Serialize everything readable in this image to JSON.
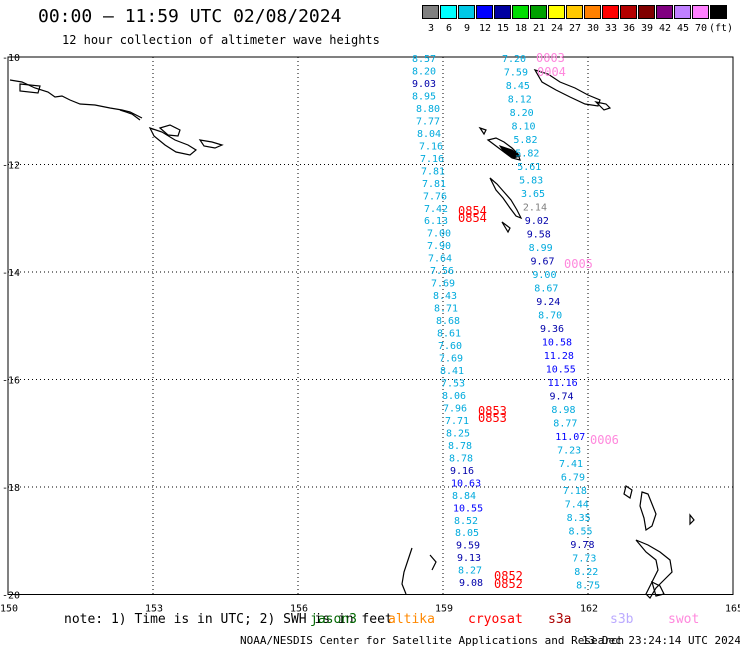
{
  "title": "00:00 – 11:59 UTC 02/08/2024",
  "subtitle": "12 hour collection of altimeter wave heights",
  "legend": {
    "colors": [
      "#808080",
      "#00ffff",
      "#00c8e6",
      "#0000ff",
      "#0000a0",
      "#00dd00",
      "#00a000",
      "#ffff00",
      "#ffc800",
      "#ff8000",
      "#ff0000",
      "#b40000",
      "#800000",
      "#800080",
      "#c080ff",
      "#ff80ff",
      "#000000"
    ],
    "labels": [
      "3",
      "6",
      "9",
      "12",
      "15",
      "18",
      "21",
      "24",
      "27",
      "30",
      "33",
      "36",
      "39",
      "42",
      "45",
      "70",
      "(ft)"
    ]
  },
  "lat_labels": [
    "-10",
    "-12",
    "-14",
    "-16",
    "-18",
    "-20"
  ],
  "lon_labels": [
    "150",
    "153",
    "156",
    "159",
    "162",
    "165"
  ],
  "track_left": [
    {
      "v": "8.57",
      "c": "#00aadd"
    },
    {
      "v": "8.20",
      "c": "#00aadd"
    },
    {
      "v": "9.03",
      "c": "#0000aa"
    },
    {
      "v": "8.95",
      "c": "#00aadd"
    },
    {
      "v": "8.80",
      "c": "#00aadd"
    },
    {
      "v": "7.77",
      "c": "#00aadd"
    },
    {
      "v": "8.04",
      "c": "#00aadd"
    },
    {
      "v": "7.16",
      "c": "#00aadd"
    },
    {
      "v": "7.16",
      "c": "#00aadd"
    },
    {
      "v": "7.81",
      "c": "#00aadd"
    },
    {
      "v": "7.81",
      "c": "#00aadd"
    },
    {
      "v": "7.76",
      "c": "#00aadd"
    },
    {
      "v": "7.42",
      "c": "#00aadd"
    },
    {
      "v": "6.13",
      "c": "#00aadd"
    },
    {
      "v": "7.00",
      "c": "#00aadd"
    },
    {
      "v": "7.90",
      "c": "#00aadd"
    },
    {
      "v": "7.64",
      "c": "#00aadd"
    },
    {
      "v": "7.56",
      "c": "#00aadd"
    },
    {
      "v": "7.69",
      "c": "#00aadd"
    },
    {
      "v": "8.43",
      "c": "#00aadd"
    },
    {
      "v": "8.71",
      "c": "#00aadd"
    },
    {
      "v": "8.68",
      "c": "#00aadd"
    },
    {
      "v": "8.61",
      "c": "#00aadd"
    },
    {
      "v": "7.60",
      "c": "#00aadd"
    },
    {
      "v": "7.69",
      "c": "#00aadd"
    },
    {
      "v": "8.41",
      "c": "#00aadd"
    },
    {
      "v": "7.53",
      "c": "#00aadd"
    },
    {
      "v": "8.06",
      "c": "#00aadd"
    },
    {
      "v": "7.96",
      "c": "#00aadd"
    },
    {
      "v": "7.71",
      "c": "#00aadd"
    },
    {
      "v": "8.25",
      "c": "#00aadd"
    },
    {
      "v": "8.78",
      "c": "#00aadd"
    },
    {
      "v": "8.78",
      "c": "#00aadd"
    },
    {
      "v": "9.16",
      "c": "#0000aa"
    },
    {
      "v": "10.63",
      "c": "#0000ff"
    },
    {
      "v": "8.84",
      "c": "#00aadd"
    },
    {
      "v": "10.55",
      "c": "#0000ff"
    },
    {
      "v": "8.52",
      "c": "#00aadd"
    },
    {
      "v": "8.05",
      "c": "#00aadd"
    },
    {
      "v": "9.59",
      "c": "#0000aa"
    },
    {
      "v": "9.13",
      "c": "#0000aa"
    },
    {
      "v": "8.27",
      "c": "#00aadd"
    },
    {
      "v": "9.08",
      "c": "#0000aa"
    }
  ],
  "track_right": [
    {
      "v": "7.20",
      "c": "#00aadd"
    },
    {
      "v": "7.59",
      "c": "#00aadd"
    },
    {
      "v": "8.45",
      "c": "#00aadd"
    },
    {
      "v": "8.12",
      "c": "#00aadd"
    },
    {
      "v": "8.20",
      "c": "#00aadd"
    },
    {
      "v": "8.10",
      "c": "#00aadd"
    },
    {
      "v": "5.82",
      "c": "#00aadd"
    },
    {
      "v": "5.82",
      "c": "#00aadd"
    },
    {
      "v": "5.61",
      "c": "#00aadd"
    },
    {
      "v": "5.83",
      "c": "#00aadd"
    },
    {
      "v": "3.65",
      "c": "#00aadd"
    },
    {
      "v": "2.14",
      "c": "#808080"
    },
    {
      "v": "9.02",
      "c": "#0000aa"
    },
    {
      "v": "9.58",
      "c": "#0000aa"
    },
    {
      "v": "8.99",
      "c": "#00aadd"
    },
    {
      "v": "9.67",
      "c": "#0000aa"
    },
    {
      "v": "9.00",
      "c": "#00aadd"
    },
    {
      "v": "8.67",
      "c": "#00aadd"
    },
    {
      "v": "9.24",
      "c": "#0000aa"
    },
    {
      "v": "8.70",
      "c": "#00aadd"
    },
    {
      "v": "9.36",
      "c": "#0000aa"
    },
    {
      "v": "10.58",
      "c": "#0000ff"
    },
    {
      "v": "11.28",
      "c": "#0000ff"
    },
    {
      "v": "10.55",
      "c": "#0000ff"
    },
    {
      "v": "11.16",
      "c": "#0000ff"
    },
    {
      "v": "9.74",
      "c": "#0000aa"
    },
    {
      "v": "8.98",
      "c": "#00aadd"
    },
    {
      "v": "8.77",
      "c": "#00aadd"
    },
    {
      "v": "11.07",
      "c": "#0000ff"
    },
    {
      "v": "7.23",
      "c": "#00aadd"
    },
    {
      "v": "7.41",
      "c": "#00aadd"
    },
    {
      "v": "6.79",
      "c": "#00aadd"
    },
    {
      "v": "7.18",
      "c": "#00aadd"
    },
    {
      "v": "7.44",
      "c": "#00aadd"
    },
    {
      "v": "8.35",
      "c": "#00aadd"
    },
    {
      "v": "8.55",
      "c": "#00aadd"
    },
    {
      "v": "9.78",
      "c": "#0000aa"
    },
    {
      "v": "7.73",
      "c": "#00aadd"
    },
    {
      "v": "8.22",
      "c": "#00aadd"
    },
    {
      "v": "8.75",
      "c": "#00aadd"
    }
  ],
  "time_labels": [
    {
      "v": "0003",
      "c": "#ff88dd"
    },
    {
      "v": "0004",
      "c": "#ff88dd"
    },
    {
      "v": "0854",
      "c": "#ff0000"
    },
    {
      "v": "0854",
      "c": "#ff0000"
    },
    {
      "v": "0005",
      "c": "#ff88dd"
    },
    {
      "v": "0853",
      "c": "#ff0000"
    },
    {
      "v": "0853",
      "c": "#ff0000"
    },
    {
      "v": "0006",
      "c": "#ff88dd"
    },
    {
      "v": "0852",
      "c": "#ff0000"
    },
    {
      "v": "0852",
      "c": "#ff0000"
    }
  ],
  "note": "note: 1) Time is in UTC; 2) SWH is in feet",
  "satellites": [
    {
      "name": "jason3",
      "c": "#006600"
    },
    {
      "name": "altika",
      "c": "#ff8800"
    },
    {
      "name": "cryosat",
      "c": "#ff0000"
    },
    {
      "name": "s3a",
      "c": "#aa0000"
    },
    {
      "name": "s3b",
      "c": "#bbaaff"
    },
    {
      "name": "swot",
      "c": "#ff88dd"
    }
  ],
  "footer": "NOAA/NESDIS Center for Satellite Applications and Research",
  "timestamp": "13 Dec 23:24:14 UTC 2024"
}
